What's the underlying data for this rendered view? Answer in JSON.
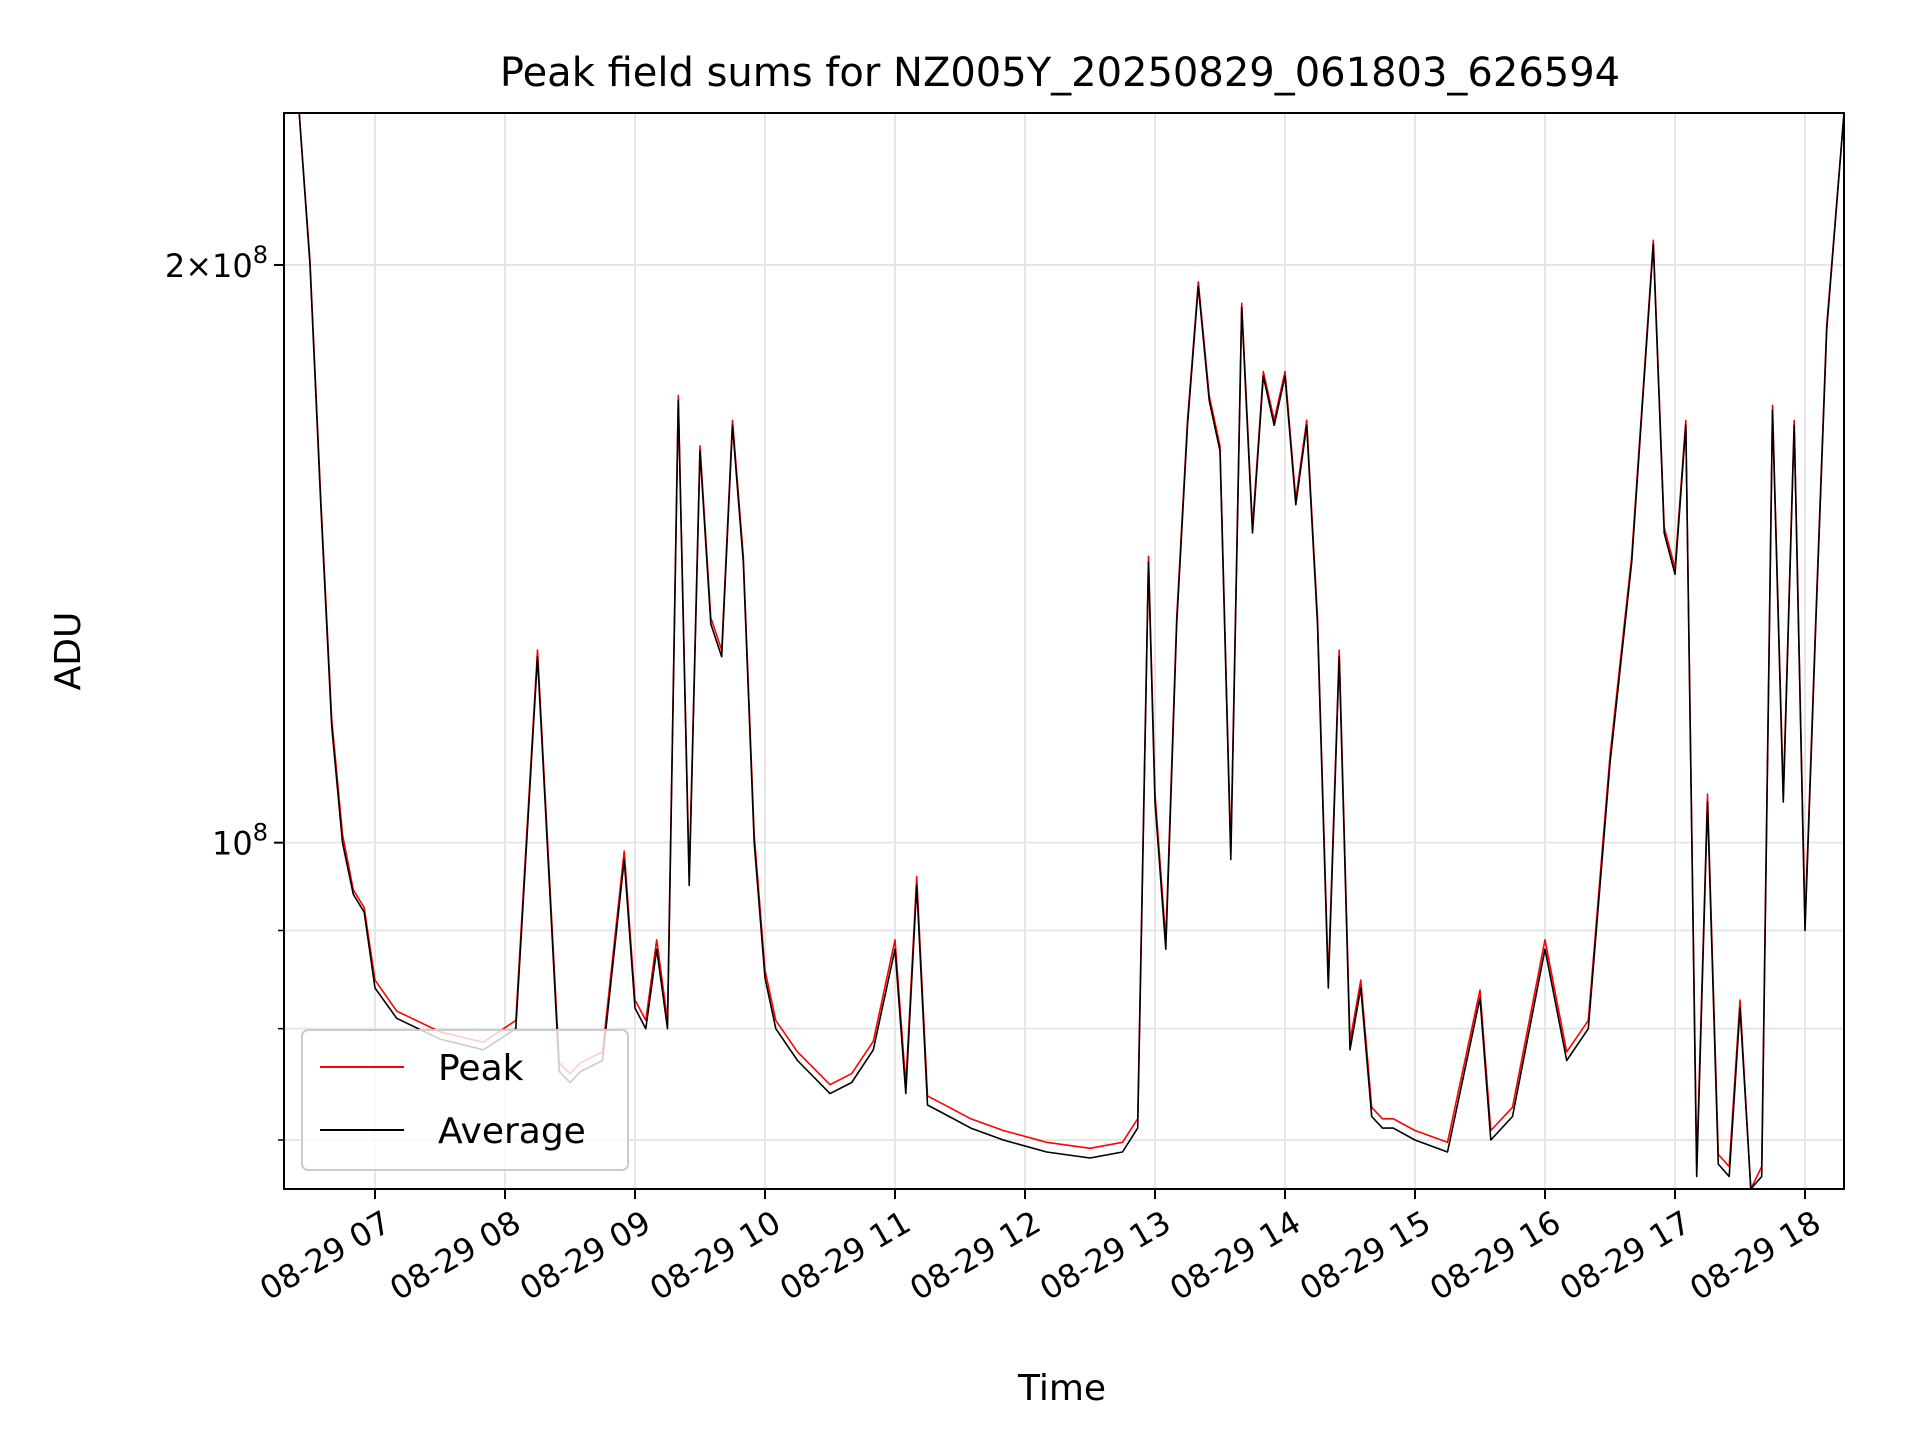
{
  "chart_data": {
    "type": "line",
    "title": "Peak field sums for NZ005Y_20250829_061803_626594",
    "xlabel": "Time",
    "ylabel": "ADU",
    "yscale": "log",
    "ylim": [
      66000000,
      240000000
    ],
    "xlim": [
      "08-29 06:18",
      "08-29 18:18"
    ],
    "grid": true,
    "legend_position": "lower-left",
    "x_ticks": [
      "08-29 07",
      "08-29 08",
      "08-29 09",
      "08-29 10",
      "08-29 11",
      "08-29 12",
      "08-29 13",
      "08-29 14",
      "08-29 15",
      "08-29 16",
      "08-29 17",
      "08-29 18"
    ],
    "y_ticks_major": [
      {
        "value": 100000000,
        "mantissa": "",
        "base": "10",
        "exp": "8"
      },
      {
        "value": 200000000,
        "mantissa": "2×",
        "base": "10",
        "exp": "8"
      }
    ],
    "y_ticks_minor": [
      70000000,
      80000000,
      90000000
    ],
    "series_colors": {
      "Peak": "#ff0000",
      "Average": "#000000"
    },
    "x": [
      "08-29 06:18",
      "08-29 06:25",
      "08-29 06:30",
      "08-29 06:35",
      "08-29 06:40",
      "08-29 06:45",
      "08-29 06:50",
      "08-29 06:55",
      "08-29 07:00",
      "08-29 07:10",
      "08-29 07:30",
      "08-29 07:50",
      "08-29 08:05",
      "08-29 08:15",
      "08-29 08:25",
      "08-29 08:30",
      "08-29 08:35",
      "08-29 08:45",
      "08-29 08:55",
      "08-29 09:00",
      "08-29 09:05",
      "08-29 09:10",
      "08-29 09:15",
      "08-29 09:20",
      "08-29 09:25",
      "08-29 09:30",
      "08-29 09:35",
      "08-29 09:40",
      "08-29 09:45",
      "08-29 09:50",
      "08-29 09:55",
      "08-29 10:00",
      "08-29 10:05",
      "08-29 10:15",
      "08-29 10:30",
      "08-29 10:40",
      "08-29 10:50",
      "08-29 11:00",
      "08-29 11:05",
      "08-29 11:10",
      "08-29 11:15",
      "08-29 11:25",
      "08-29 11:35",
      "08-29 11:50",
      "08-29 12:10",
      "08-29 12:30",
      "08-29 12:45",
      "08-29 12:52",
      "08-29 12:57",
      "08-29 13:00",
      "08-29 13:05",
      "08-29 13:10",
      "08-29 13:15",
      "08-29 13:20",
      "08-29 13:25",
      "08-29 13:30",
      "08-29 13:35",
      "08-29 13:40",
      "08-29 13:45",
      "08-29 13:50",
      "08-29 13:55",
      "08-29 14:00",
      "08-29 14:05",
      "08-29 14:10",
      "08-29 14:15",
      "08-29 14:20",
      "08-29 14:25",
      "08-29 14:30",
      "08-29 14:35",
      "08-29 14:40",
      "08-29 14:45",
      "08-29 14:50",
      "08-29 15:00",
      "08-29 15:15",
      "08-29 15:30",
      "08-29 15:35",
      "08-29 15:45",
      "08-29 16:00",
      "08-29 16:10",
      "08-29 16:20",
      "08-29 16:30",
      "08-29 16:40",
      "08-29 16:50",
      "08-29 16:55",
      "08-29 17:00",
      "08-29 17:05",
      "08-29 17:10",
      "08-29 17:15",
      "08-29 17:20",
      "08-29 17:25",
      "08-29 17:30",
      "08-29 17:35",
      "08-29 17:40",
      "08-29 17:45",
      "08-29 17:50",
      "08-29 17:55",
      "08-29 18:00",
      "08-29 18:05",
      "08-29 18:10",
      "08-29 18:18"
    ],
    "series": [
      {
        "name": "Average",
        "values": [
          240000000,
          240000000,
          200000000,
          150000000,
          115000000,
          100000000,
          94000000,
          92000000,
          84000000,
          81000000,
          79000000,
          78000000,
          80000000,
          125000000,
          76000000,
          75000000,
          76000000,
          77000000,
          98000000,
          82000000,
          80000000,
          88000000,
          80000000,
          170000000,
          95000000,
          160000000,
          130000000,
          125000000,
          165000000,
          140000000,
          100000000,
          85000000,
          80000000,
          77000000,
          74000000,
          75000000,
          78000000,
          88000000,
          74000000,
          95000000,
          73000000,
          72000000,
          71000000,
          70000000,
          69000000,
          68500000,
          69000000,
          71000000,
          140000000,
          105000000,
          88000000,
          130000000,
          165000000,
          195000000,
          170000000,
          160000000,
          98000000,
          190000000,
          145000000,
          175000000,
          165000000,
          175000000,
          150000000,
          165000000,
          130000000,
          84000000,
          125000000,
          78000000,
          84000000,
          72000000,
          71000000,
          71000000,
          70000000,
          69000000,
          83000000,
          70000000,
          72000000,
          88000000,
          77000000,
          80000000,
          110000000,
          140000000,
          205000000,
          145000000,
          138000000,
          165000000,
          67000000,
          105000000,
          68000000,
          67000000,
          82000000,
          65000000,
          67000000,
          168000000,
          105000000,
          165000000,
          90000000,
          130000000,
          185000000,
          240000000
        ]
      },
      {
        "name": "Peak",
        "values": [
          240000000,
          240000000,
          201000000,
          151000000,
          116000000,
          101000000,
          94500000,
          92500000,
          84800000,
          81700000,
          79700000,
          78700000,
          80800000,
          126000000,
          76800000,
          75800000,
          76800000,
          77800000,
          99000000,
          82800000,
          80800000,
          89000000,
          80800000,
          171000000,
          96000000,
          161000000,
          131000000,
          126000000,
          166000000,
          141000000,
          101000000,
          85800000,
          80800000,
          77800000,
          74800000,
          75800000,
          78800000,
          89000000,
          74800000,
          96000000,
          73800000,
          72800000,
          71800000,
          70800000,
          69800000,
          69300000,
          69800000,
          71800000,
          141000000,
          106000000,
          89000000,
          131000000,
          166000000,
          196000000,
          171000000,
          161000000,
          99000000,
          191000000,
          146000000,
          176000000,
          166000000,
          176000000,
          151000000,
          166000000,
          131000000,
          84800000,
          126000000,
          78800000,
          84800000,
          72800000,
          71800000,
          71800000,
          70800000,
          69800000,
          83800000,
          70800000,
          72800000,
          89000000,
          77800000,
          80800000,
          111000000,
          141000000,
          206000000,
          146000000,
          139000000,
          166000000,
          67800000,
          106000000,
          68800000,
          67800000,
          82800000,
          65800000,
          67800000,
          169000000,
          106000000,
          166000000,
          90800000,
          131000000,
          186000000,
          240000000
        ]
      }
    ],
    "legend": [
      "Peak",
      "Average"
    ]
  }
}
